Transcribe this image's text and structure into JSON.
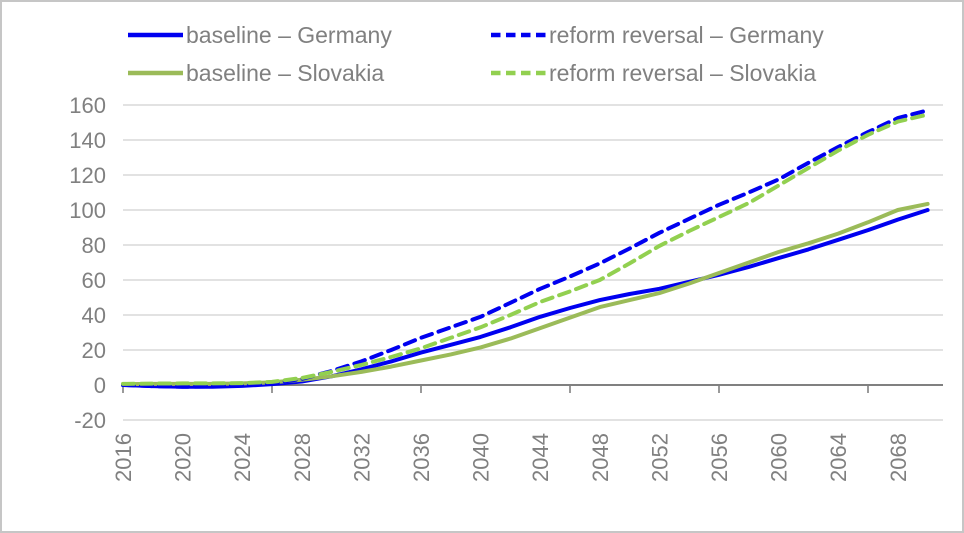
{
  "chart_data": {
    "type": "line",
    "title": "",
    "xlabel": "",
    "ylabel": "",
    "xlim": [
      2016,
      2070
    ],
    "ylim": [
      -20,
      160
    ],
    "grid": true,
    "legend_position": "top",
    "x": [
      2016,
      2018,
      2020,
      2022,
      2024,
      2026,
      2028,
      2030,
      2032,
      2034,
      2036,
      2038,
      2040,
      2042,
      2044,
      2046,
      2048,
      2050,
      2052,
      2054,
      2056,
      2058,
      2060,
      2062,
      2064,
      2066,
      2068,
      2070
    ],
    "series": [
      {
        "id": "baseline-germany",
        "name": "baseline – Germany",
        "color": "#0000f0",
        "dash": "solid",
        "values": [
          0,
          -0.6,
          -1,
          -1,
          -0.5,
          0.5,
          2,
          5,
          9,
          13.5,
          18.5,
          23,
          27.5,
          33,
          39,
          44,
          48.5,
          52,
          55,
          59,
          63,
          67.5,
          72.5,
          77.5,
          83,
          88.5,
          94.5,
          100
        ]
      },
      {
        "id": "baseline-slovakia",
        "name": "baseline – Slovakia",
        "color": "#9bbb59",
        "dash": "solid",
        "values": [
          0.5,
          0.6,
          0.6,
          0.6,
          0.9,
          1.5,
          3,
          5,
          7.5,
          10.5,
          14,
          17.5,
          21.5,
          26.5,
          32.5,
          38.5,
          44.5,
          48.5,
          52.5,
          58,
          64,
          70,
          76,
          81,
          86.5,
          93,
          100,
          103.5
        ]
      },
      {
        "id": "reform-reversal-germany",
        "name": "reform reversal – Germany",
        "color": "#0000f0",
        "dash": "dashed",
        "values": [
          0,
          -0.6,
          -1,
          -0.8,
          0,
          1,
          3.5,
          8,
          13.5,
          20,
          27,
          33,
          39,
          47,
          55,
          62,
          69.5,
          78,
          87,
          95,
          103,
          110,
          117.5,
          127,
          136,
          144.5,
          152.5,
          157
        ]
      },
      {
        "id": "reform-reversal-slovakia",
        "name": "reform reversal – Slovakia",
        "color": "#92d050",
        "dash": "dashed",
        "values": [
          0.6,
          0.8,
          0.9,
          0.9,
          1.1,
          1.8,
          4,
          7.5,
          11.5,
          16,
          21,
          27,
          33,
          40,
          47.5,
          53.5,
          60,
          69.5,
          79.5,
          88,
          96,
          104,
          114,
          124,
          134,
          143,
          150.5,
          154.5
        ]
      }
    ],
    "yticks": [
      -20,
      0,
      20,
      40,
      60,
      80,
      100,
      120,
      140,
      160
    ],
    "ytick_labels": [
      "-20",
      "0",
      "20",
      "40",
      "60",
      "80",
      "100",
      "120",
      "140",
      "160"
    ],
    "xtick_labels": [
      "2016",
      "2020",
      "2024",
      "2028",
      "2032",
      "2036",
      "2040",
      "2044",
      "2048",
      "2052",
      "2056",
      "2060",
      "2064",
      "2068"
    ],
    "axis_tick_years": [
      2016,
      2026,
      2036,
      2046,
      2056,
      2066
    ]
  },
  "colors": {
    "axis": "#808080",
    "grid": "#d9d9d9",
    "text": "#808080",
    "background": "#ffffff",
    "blue": "#0000f0",
    "olive_green": "#9bbb59",
    "bright_green": "#92d050"
  }
}
